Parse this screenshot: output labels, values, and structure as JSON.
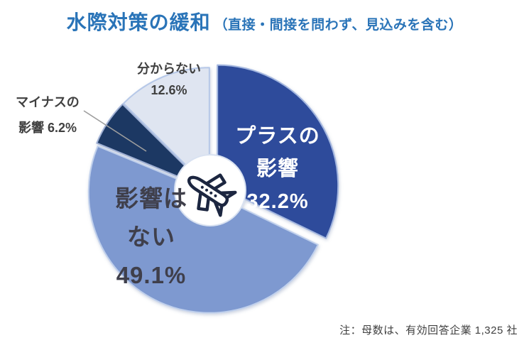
{
  "title": {
    "main": "水際対策の緩和",
    "sub": "（直接・間接を問わず、見込みを含む）",
    "color": "#2A74B8"
  },
  "note": "注：母数は、有効回答企業 1,325 社",
  "center_icon": {
    "name": "airplane-icon",
    "color": "#1C2640"
  },
  "chart_data": {
    "type": "pie",
    "title": "水際対策の緩和（直接・間接を問わず、見込みを含む）",
    "donut": true,
    "donut_hole_ratio": 0.29,
    "start_angle_deg": 0,
    "direction": "clockwise",
    "legend": "none",
    "total": 100.1,
    "segments": [
      {
        "id": "plus",
        "label": "プラスの影響",
        "value": 32.2,
        "pct_text": "32.2%",
        "color": "#2E4C9B",
        "border": "#A3B6DF",
        "exploded": true,
        "label_lines": [
          "プラスの",
          "影響",
          "32.2%"
        ],
        "label_color": "#FFFFFF"
      },
      {
        "id": "none",
        "label": "影響はない",
        "value": 49.1,
        "pct_text": "49.1%",
        "color": "#7E99D0",
        "border": "#C0D0EC",
        "exploded": false,
        "label_lines": [
          "影響は",
          "ない",
          "49.1%"
        ],
        "label_color": "#3F3F4B"
      },
      {
        "id": "minus",
        "label": "マイナスの影響",
        "value": 6.2,
        "pct_text": "6.2%",
        "color": "#1F3864",
        "border": "#9FB0D4",
        "exploded": false,
        "label_lines": [
          "マイナスの",
          "影響 6.2%"
        ],
        "label_color": "#404040",
        "leader_line": true
      },
      {
        "id": "unknown",
        "label": "分からない",
        "value": 12.6,
        "pct_text": "12.6%",
        "color": "#DFE5F1",
        "border": "#B6C8E8",
        "exploded": false,
        "label_lines": [
          "分からない",
          "12.6%"
        ],
        "label_color": "#404040"
      }
    ]
  }
}
